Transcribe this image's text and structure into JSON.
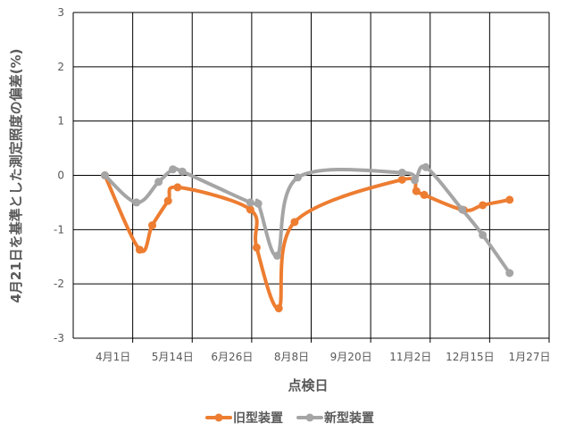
{
  "chart_data": {
    "type": "line",
    "title": "",
    "xlabel": "点検日",
    "ylabel": "4月21日を基準とした測定照度の偏差(%)",
    "ylim": [
      -3,
      3
    ],
    "y_ticks": [
      "3",
      "2",
      "1",
      "0",
      "-1",
      "-2",
      "-3"
    ],
    "x_tick_labels": [
      "4月1日",
      "5月14日",
      "6月26日",
      "8月8日",
      "9月20日",
      "11月2日",
      "12月15日",
      "1月27日"
    ],
    "x_range_days": [
      0,
      301
    ],
    "grid": true,
    "legend_position": "bottom",
    "series": [
      {
        "name": "旧型装置",
        "color": "#ED7D31",
        "points": [
          {
            "date": "4月21日",
            "day": 20,
            "value": 0.0
          },
          {
            "date": "5月13日",
            "day": 42,
            "value": -1.37
          },
          {
            "date": "5月21日",
            "day": 50,
            "value": -0.92
          },
          {
            "date": "5月31日",
            "day": 60,
            "value": -0.47
          },
          {
            "date": "6月6日",
            "day": 66,
            "value": -0.22
          },
          {
            "date": "7月22日",
            "day": 112,
            "value": -0.63
          },
          {
            "date": "7月26日",
            "day": 116,
            "value": -1.33
          },
          {
            "date": "8月9日",
            "day": 130,
            "value": -2.45
          },
          {
            "date": "8月19日",
            "day": 140,
            "value": -0.86
          },
          {
            "date": "10月26日",
            "day": 208,
            "value": -0.08
          },
          {
            "date": "11月4日",
            "day": 217,
            "value": -0.29
          },
          {
            "date": "11月9日",
            "day": 222,
            "value": -0.36
          },
          {
            "date": "12月4日",
            "day": 247,
            "value": -0.64
          },
          {
            "date": "12月16日",
            "day": 259,
            "value": -0.55
          },
          {
            "date": "1月2日",
            "day": 276,
            "value": -0.45
          }
        ]
      },
      {
        "name": "新型装置",
        "color": "#A5A5A5",
        "points": [
          {
            "date": "4月21日",
            "day": 20,
            "value": 0.0
          },
          {
            "date": "5月11日",
            "day": 40,
            "value": -0.5
          },
          {
            "date": "5月25日",
            "day": 54,
            "value": -0.12
          },
          {
            "date": "6月3日",
            "day": 63,
            "value": 0.11
          },
          {
            "date": "6月9日",
            "day": 69,
            "value": 0.07
          },
          {
            "date": "7月22日",
            "day": 112,
            "value": -0.5
          },
          {
            "date": "7月27日",
            "day": 117,
            "value": -0.52
          },
          {
            "date": "8月8日",
            "day": 129,
            "value": -1.48
          },
          {
            "date": "8月21日",
            "day": 142,
            "value": -0.04
          },
          {
            "date": "10月26日",
            "day": 208,
            "value": 0.05
          },
          {
            "date": "11月3日",
            "day": 216,
            "value": -0.09
          },
          {
            "date": "11月10日",
            "day": 223,
            "value": 0.15
          },
          {
            "date": "12月3日",
            "day": 246,
            "value": -0.63
          },
          {
            "date": "12月16日",
            "day": 259,
            "value": -1.1
          },
          {
            "date": "1月2日",
            "day": 276,
            "value": -1.8
          }
        ]
      }
    ]
  }
}
